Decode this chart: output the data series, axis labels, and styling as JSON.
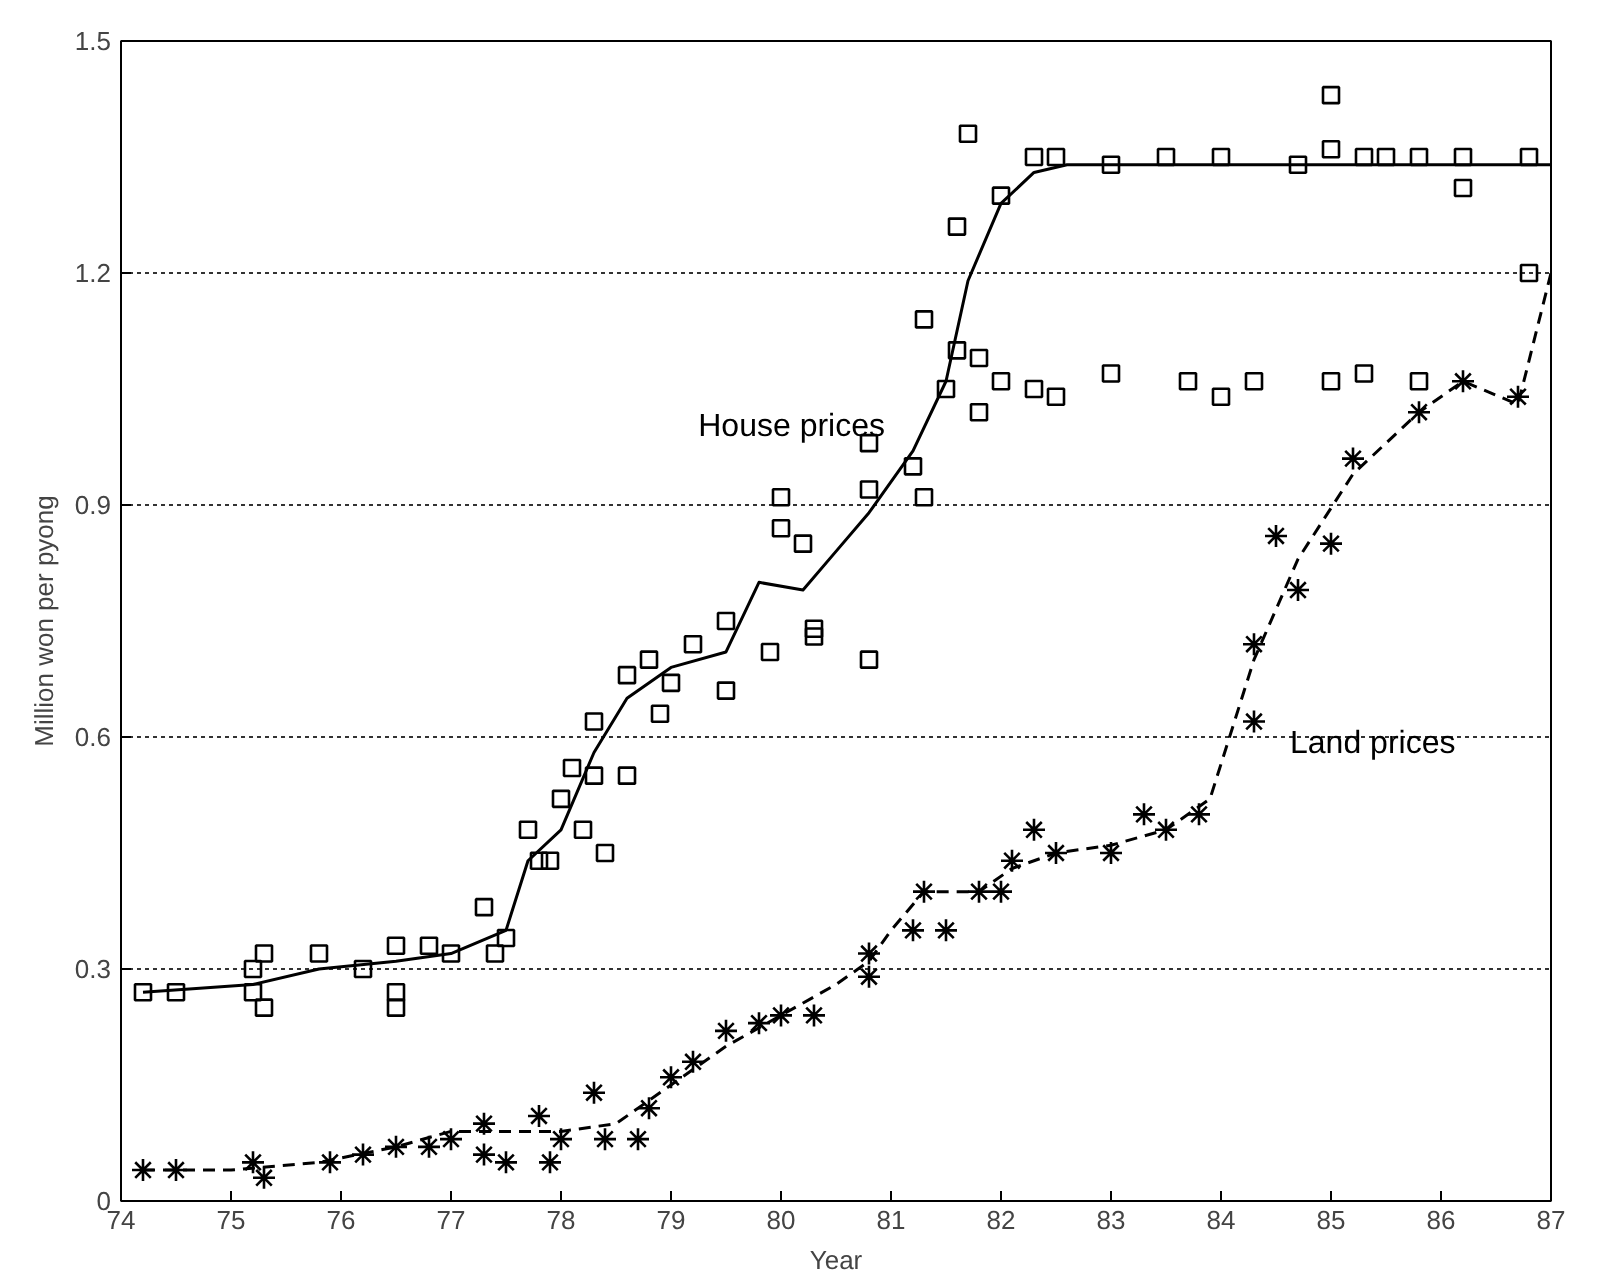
{
  "chart_data": {
    "type": "scatter",
    "xlabel": "Year",
    "ylabel": "Million won per pyong",
    "xlim": [
      74,
      87
    ],
    "ylim": [
      0,
      1.5
    ],
    "xticks": [
      74,
      75,
      76,
      77,
      78,
      79,
      80,
      81,
      82,
      83,
      84,
      85,
      86,
      87
    ],
    "yticks": [
      0,
      0.3,
      0.6,
      0.9,
      1.2,
      1.5
    ],
    "grid": "y",
    "series": [
      {
        "marker": "square",
        "color": "#000000",
        "x": [
          74.2,
          74.5,
          75.2,
          75.2,
          75.3,
          75.3,
          75.8,
          76.2,
          76.5,
          76.5,
          76.5,
          76.8,
          77.0,
          77.3,
          77.4,
          77.5,
          77.7,
          77.8,
          77.9,
          78.0,
          78.1,
          78.2,
          78.3,
          78.3,
          78.4,
          78.6,
          78.6,
          78.8,
          78.9,
          79.0,
          79.2,
          79.5,
          79.5,
          79.9,
          80.0,
          80.0,
          80.2,
          80.3,
          80.3,
          80.8,
          80.8,
          80.8,
          81.2,
          81.3,
          81.3,
          81.5,
          81.6,
          81.6,
          81.7,
          81.8,
          81.8,
          82.0,
          82.0,
          82.3,
          82.3,
          82.5,
          82.5,
          83.0,
          83.0,
          83.5,
          83.7,
          84.0,
          84.0,
          84.3,
          84.7,
          85.0,
          85.0,
          85.3,
          85.3,
          85.5,
          85.8,
          85.8,
          86.2,
          86.2,
          86.8,
          86.8,
          85.0
        ],
        "values": [
          0.27,
          0.27,
          0.27,
          0.3,
          0.32,
          0.25,
          0.32,
          0.3,
          0.33,
          0.27,
          0.25,
          0.33,
          0.32,
          0.38,
          0.32,
          0.34,
          0.48,
          0.44,
          0.44,
          0.52,
          0.56,
          0.48,
          0.62,
          0.55,
          0.45,
          0.68,
          0.55,
          0.7,
          0.63,
          0.67,
          0.72,
          0.66,
          0.75,
          0.71,
          0.91,
          0.87,
          0.85,
          0.74,
          0.73,
          0.7,
          0.92,
          0.98,
          0.95,
          0.91,
          1.14,
          1.05,
          1.26,
          1.1,
          1.38,
          1.09,
          1.02,
          1.06,
          1.3,
          1.05,
          1.35,
          1.04,
          1.35,
          1.07,
          1.34,
          1.35,
          1.06,
          1.04,
          1.35,
          1.06,
          1.34,
          1.36,
          1.06,
          1.07,
          1.35,
          1.35,
          1.06,
          1.35,
          1.31,
          1.35,
          1.35,
          1.2,
          1.43
        ]
      },
      {
        "marker": "cross",
        "color": "#000000",
        "x": [
          74.2,
          74.5,
          75.2,
          75.3,
          75.9,
          76.2,
          76.5,
          76.8,
          77.0,
          77.3,
          77.3,
          77.5,
          77.8,
          77.9,
          78.0,
          78.3,
          78.4,
          78.7,
          78.8,
          79.0,
          79.2,
          79.5,
          79.8,
          80.0,
          80.3,
          80.8,
          80.8,
          81.2,
          81.3,
          81.5,
          81.8,
          82.0,
          82.1,
          82.3,
          82.5,
          83.0,
          83.3,
          83.5,
          83.8,
          84.3,
          84.3,
          84.5,
          84.7,
          85.0,
          85.2,
          85.8,
          86.2,
          86.7
        ],
        "values": [
          0.04,
          0.04,
          0.05,
          0.03,
          0.05,
          0.06,
          0.07,
          0.07,
          0.08,
          0.06,
          0.1,
          0.05,
          0.11,
          0.05,
          0.08,
          0.14,
          0.08,
          0.08,
          0.12,
          0.16,
          0.18,
          0.22,
          0.23,
          0.24,
          0.24,
          0.32,
          0.29,
          0.35,
          0.4,
          0.35,
          0.4,
          0.4,
          0.44,
          0.48,
          0.45,
          0.45,
          0.5,
          0.48,
          0.5,
          0.62,
          0.72,
          0.86,
          0.79,
          0.85,
          0.96,
          1.02,
          1.06,
          1.04
        ]
      },
      {
        "type": "line",
        "name": "House prices",
        "line_style": "solid",
        "color": "#000000",
        "x": [
          74.2,
          75.2,
          75.8,
          76.5,
          77.0,
          77.5,
          77.7,
          78.0,
          78.3,
          78.6,
          79.0,
          79.5,
          79.8,
          80.2,
          80.5,
          80.8,
          81.2,
          81.5,
          81.7,
          82.0,
          82.3,
          82.6,
          83.0,
          87.0
        ],
        "values": [
          0.27,
          0.28,
          0.3,
          0.31,
          0.32,
          0.35,
          0.44,
          0.48,
          0.58,
          0.65,
          0.69,
          0.71,
          0.8,
          0.79,
          0.84,
          0.89,
          0.97,
          1.06,
          1.19,
          1.29,
          1.33,
          1.34,
          1.34,
          1.34
        ]
      },
      {
        "type": "line",
        "name": "Land prices",
        "line_style": "dashed",
        "color": "#000000",
        "x": [
          74.2,
          75.0,
          75.8,
          76.5,
          77.0,
          77.5,
          78.0,
          78.5,
          79.0,
          79.5,
          80.0,
          80.5,
          80.8,
          81.0,
          81.3,
          81.8,
          82.1,
          82.5,
          83.0,
          83.5,
          83.9,
          84.3,
          84.7,
          85.2,
          85.8,
          86.2,
          86.7,
          87.0
        ],
        "values": [
          0.04,
          0.04,
          0.05,
          0.07,
          0.09,
          0.09,
          0.09,
          0.1,
          0.15,
          0.2,
          0.24,
          0.28,
          0.31,
          0.35,
          0.4,
          0.4,
          0.43,
          0.45,
          0.46,
          0.48,
          0.52,
          0.7,
          0.83,
          0.94,
          1.02,
          1.06,
          1.03,
          1.2
        ]
      }
    ]
  }
}
